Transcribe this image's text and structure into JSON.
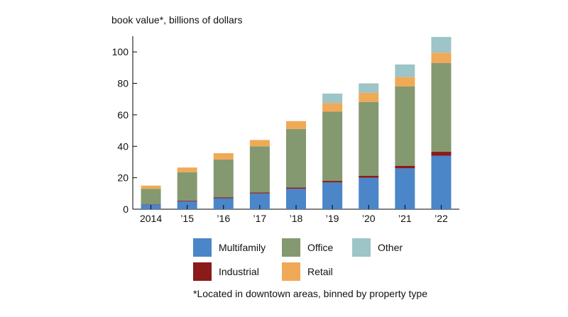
{
  "chart_data": {
    "type": "bar",
    "stacked": true,
    "ylabel": "book value*, billions of dollars",
    "ylim": [
      0,
      110
    ],
    "yticks": [
      0,
      20,
      40,
      60,
      80,
      100
    ],
    "categories": [
      "2014",
      "’15",
      "’16",
      "’17",
      "’18",
      "’19",
      "’20",
      "’21",
      "’22"
    ],
    "series": [
      {
        "name": "Multifamily",
        "color": "#4a86c8",
        "values": [
          3,
          5,
          7,
          10,
          13,
          17,
          20,
          26,
          34
        ]
      },
      {
        "name": "Industrial",
        "color": "#8b1a1a",
        "values": [
          0.3,
          0.5,
          0.6,
          0.7,
          0.8,
          1,
          1.2,
          1.5,
          2.5
        ]
      },
      {
        "name": "Office",
        "color": "#84996f",
        "values": [
          9.7,
          18,
          24,
          29.3,
          37.2,
          44,
          47,
          50.5,
          56.5
        ]
      },
      {
        "name": "Retail",
        "color": "#f0a957",
        "values": [
          2,
          3,
          4,
          4,
          5,
          5.5,
          5.8,
          6,
          6.5
        ]
      },
      {
        "name": "Other",
        "color": "#9dc4c6",
        "values": [
          0,
          0,
          0,
          0,
          0,
          6,
          6,
          8,
          10
        ]
      }
    ],
    "legend_order": [
      "Multifamily",
      "Office",
      "Other",
      "Industrial",
      "Retail"
    ],
    "footnote": "*Located in downtown areas, binned by property type"
  }
}
